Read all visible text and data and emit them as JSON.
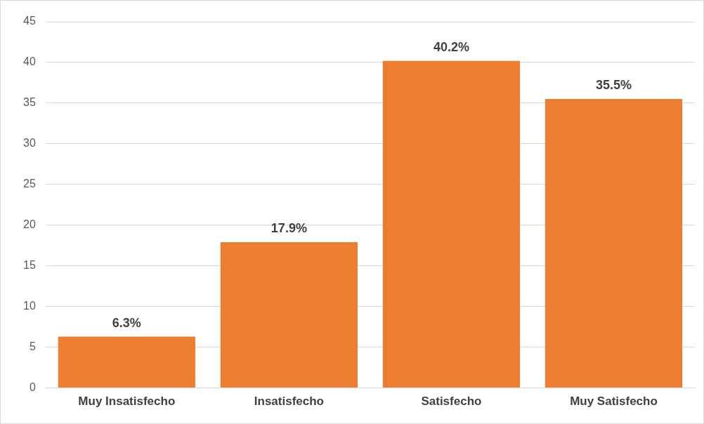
{
  "chart_data": {
    "type": "bar",
    "categories": [
      "Muy Insatisfecho",
      "Insatisfecho",
      "Satisfecho",
      "Muy Satisfecho"
    ],
    "values": [
      6.3,
      17.9,
      40.2,
      35.5
    ],
    "value_labels": [
      "6.3%",
      "17.9%",
      "40.2%",
      "35.5%"
    ],
    "color": "#ed7d31",
    "ylim": [
      0,
      45
    ],
    "yticks": [
      0,
      5,
      10,
      15,
      20,
      25,
      30,
      35,
      40,
      45
    ],
    "grid": "y",
    "legend": false
  }
}
